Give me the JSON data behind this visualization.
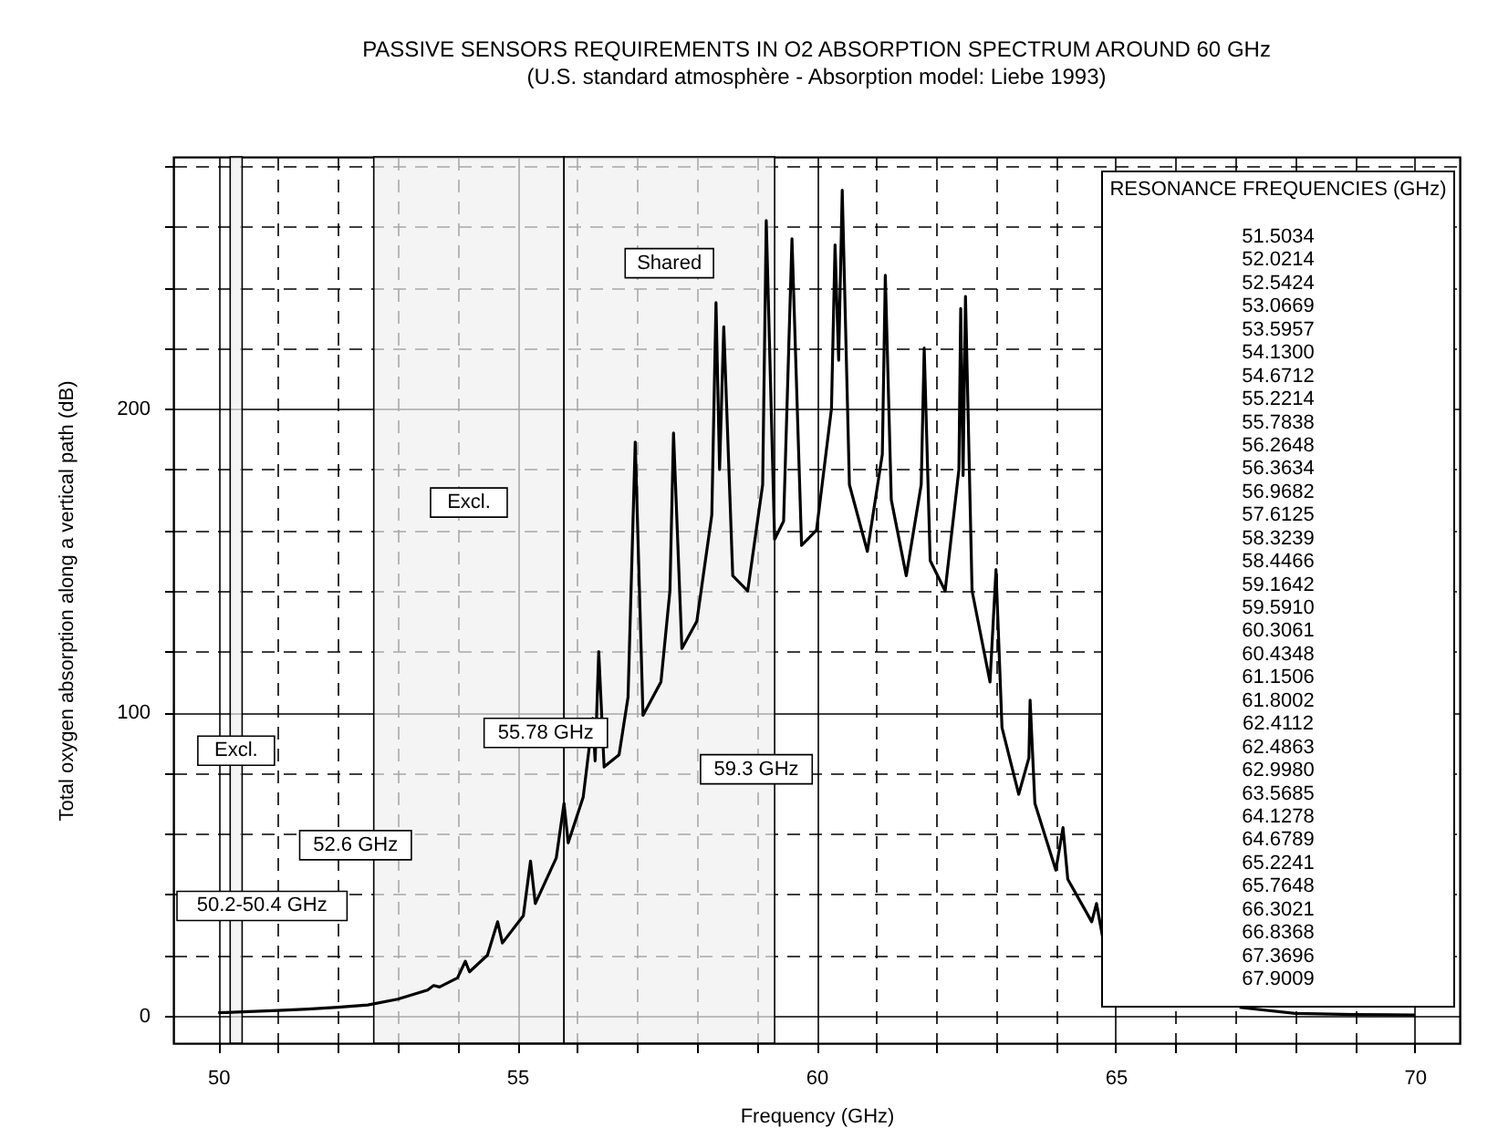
{
  "chart_data": {
    "type": "line",
    "title": "PASSIVE SENSORS REQUIREMENTS IN O2 ABSORPTION SPECTRUM AROUND 60 GHz",
    "subtitle": "(U.S. standard atmosphère - Absorption model: Liebe 1993)",
    "xlabel": "Frequency (GHz)",
    "ylabel": "Total oxygen absorption along a vertical path (dB)",
    "x": [
      50,
      51,
      51.5,
      52,
      52.5,
      53,
      53.5,
      53.6,
      53.7,
      54.0,
      54.13,
      54.2,
      54.5,
      54.67,
      54.75,
      55.1,
      55.22,
      55.3,
      55.65,
      55.78,
      55.85,
      56.1,
      56.26,
      56.3,
      56.36,
      56.45,
      56.7,
      56.85,
      56.97,
      57.1,
      57.4,
      57.55,
      57.61,
      57.75,
      58.0,
      58.25,
      58.32,
      58.38,
      58.45,
      58.6,
      58.85,
      59.1,
      59.16,
      59.3,
      59.45,
      59.59,
      59.75,
      60.0,
      60.25,
      60.31,
      60.37,
      60.43,
      60.55,
      60.85,
      61.1,
      61.15,
      61.25,
      61.5,
      61.75,
      61.8,
      61.9,
      62.15,
      62.38,
      62.41,
      62.45,
      62.49,
      62.6,
      62.9,
      63.0,
      63.1,
      63.38,
      63.55,
      63.57,
      63.65,
      64.0,
      64.12,
      64.2,
      64.6,
      64.68,
      64.8,
      64.9,
      67.07,
      68,
      69,
      70
    ],
    "series": [
      {
        "color": "#000000",
        "values": [
          1,
          1.8,
          2.2,
          2.8,
          3.6,
          5.5,
          8.5,
          10,
          9.5,
          12.5,
          18,
          14.5,
          20,
          31,
          24,
          33,
          51,
          37,
          52,
          70,
          57,
          72,
          98,
          84,
          120,
          82,
          86,
          105,
          189,
          99,
          110,
          140,
          192,
          121,
          130,
          165,
          235,
          180,
          227,
          145,
          140,
          175,
          262,
          157,
          163,
          256,
          155,
          160,
          200,
          254,
          216,
          272,
          175,
          153,
          185,
          244,
          170,
          145,
          175,
          220,
          150,
          140,
          180,
          233,
          178,
          237,
          140,
          110,
          147,
          95,
          73,
          85,
          104,
          70,
          48,
          62,
          45,
          31,
          37,
          24,
          null,
          2.8,
          0.8,
          0.4,
          0.3
        ]
      }
    ],
    "xlim": [
      49.25,
      70.75
    ],
    "xticks": [
      50,
      {
        "value": 51,
        "label": null
      },
      {
        "value": 52,
        "label": null
      },
      {
        "value": 53,
        "label": null
      },
      {
        "value": 54,
        "label": null
      },
      55,
      {
        "value": 56,
        "label": null
      },
      {
        "value": 57,
        "label": null
      },
      {
        "value": 58,
        "label": null
      },
      {
        "value": 59,
        "label": null
      },
      60,
      {
        "value": 61,
        "label": null
      },
      {
        "value": 62,
        "label": null
      },
      {
        "value": 63,
        "label": null
      },
      {
        "value": 64,
        "label": null
      },
      65,
      {
        "value": 66,
        "label": null
      },
      {
        "value": 67,
        "label": null
      },
      {
        "value": 68,
        "label": null
      },
      {
        "value": 69,
        "label": null
      },
      70
    ],
    "ylim": [
      -9,
      283
    ],
    "yticks": [
      0,
      {
        "value": 20,
        "label": null
      },
      {
        "value": 40,
        "label": null
      },
      {
        "value": 60,
        "label": null
      },
      {
        "value": 80,
        "label": null
      },
      100,
      {
        "value": 120,
        "label": null
      },
      {
        "value": 140,
        "label": null
      },
      {
        "value": 160,
        "label": null
      },
      {
        "value": 180,
        "label": null
      },
      200,
      {
        "value": 220,
        "label": null
      },
      {
        "value": 240,
        "label": null
      },
      {
        "value": 260,
        "label": null
      },
      {
        "value": 280,
        "label": null
      }
    ],
    "grid": true,
    "bands": [
      {
        "axis": "x",
        "from": 50.2,
        "to": 50.4,
        "label": "Excl."
      },
      {
        "axis": "x",
        "from": 52.6,
        "to": 55.78,
        "label": "Excl."
      },
      {
        "axis": "x",
        "from": 55.78,
        "to": 59.3,
        "label": "Shared"
      }
    ],
    "annotations": [
      {
        "text": "50.2-50.4 GHz",
        "x": 50.3,
        "y": 20
      },
      {
        "text": "52.6 GHz",
        "x": 52.6,
        "y": 40
      },
      {
        "text": "55.78 GHz",
        "x": 55.78,
        "y": 77
      },
      {
        "text": "59.3 GHz",
        "x": 59.3,
        "y": 65
      },
      "RESONANCE FREQUENCIES (GHz)",
      "51.5034",
      "52.0214",
      "52.5424",
      "53.0669",
      "53.5957",
      "54.1300",
      "54.6712",
      "55.2214",
      "55.7838",
      "56.2648",
      "56.3634",
      "56.9682",
      "57.6125",
      "58.3239",
      "58.4466",
      "59.1642",
      "59.5910",
      "60.3061",
      "60.4348",
      "61.1506",
      "61.8002",
      "62.4112",
      "62.4863",
      "62.9980",
      "63.5685",
      "64.1278",
      "64.6789",
      "65.2241",
      "65.7648",
      "66.3021",
      "66.8368",
      "67.3696",
      "67.9009"
    ]
  }
}
